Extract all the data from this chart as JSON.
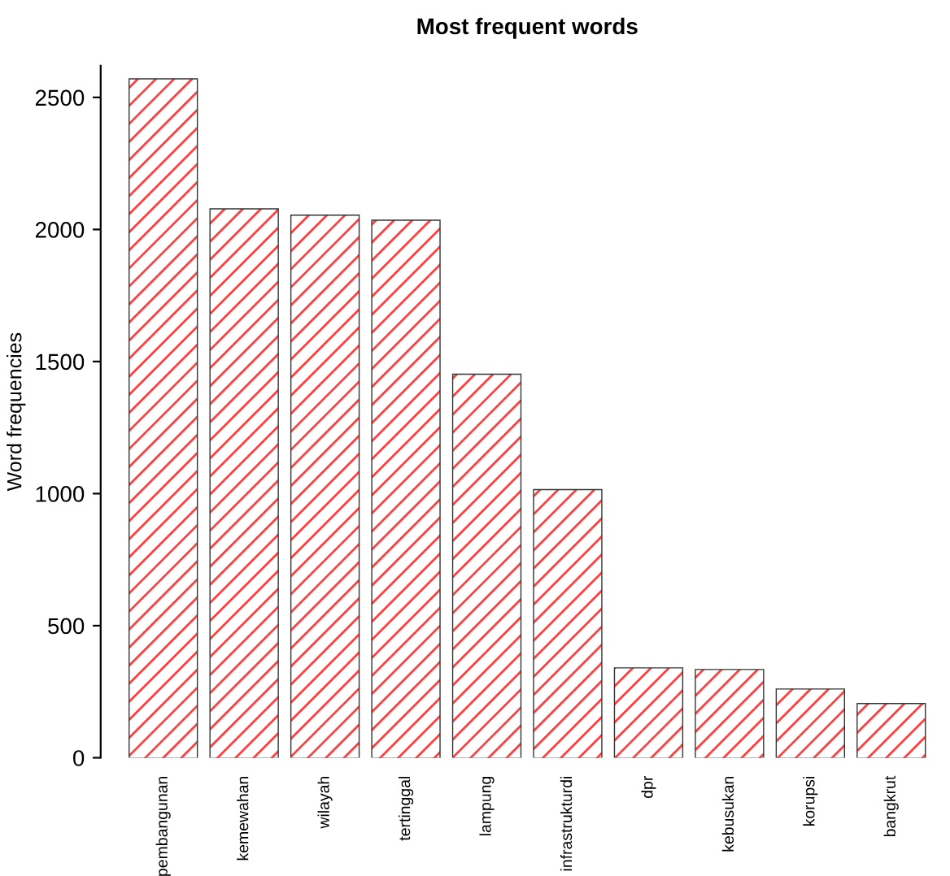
{
  "chart_data": {
    "type": "bar",
    "title": "Most frequent words",
    "ylabel": "Word frequencies",
    "categories": [
      "pembangunan",
      "kemewahan",
      "wilayah",
      "tertinggal",
      "lampung",
      "infrastrukturdi",
      "dpr",
      "kebusukan",
      "korupsi",
      "bangkrut"
    ],
    "values": [
      2568,
      2076,
      2052,
      2033,
      1450,
      1013,
      338,
      332,
      258,
      203
    ],
    "color": "#ff4040",
    "ylim": [
      0,
      2620
    ],
    "yticks": [
      0,
      500,
      1000,
      1500,
      2000,
      2500
    ],
    "grid": false
  }
}
